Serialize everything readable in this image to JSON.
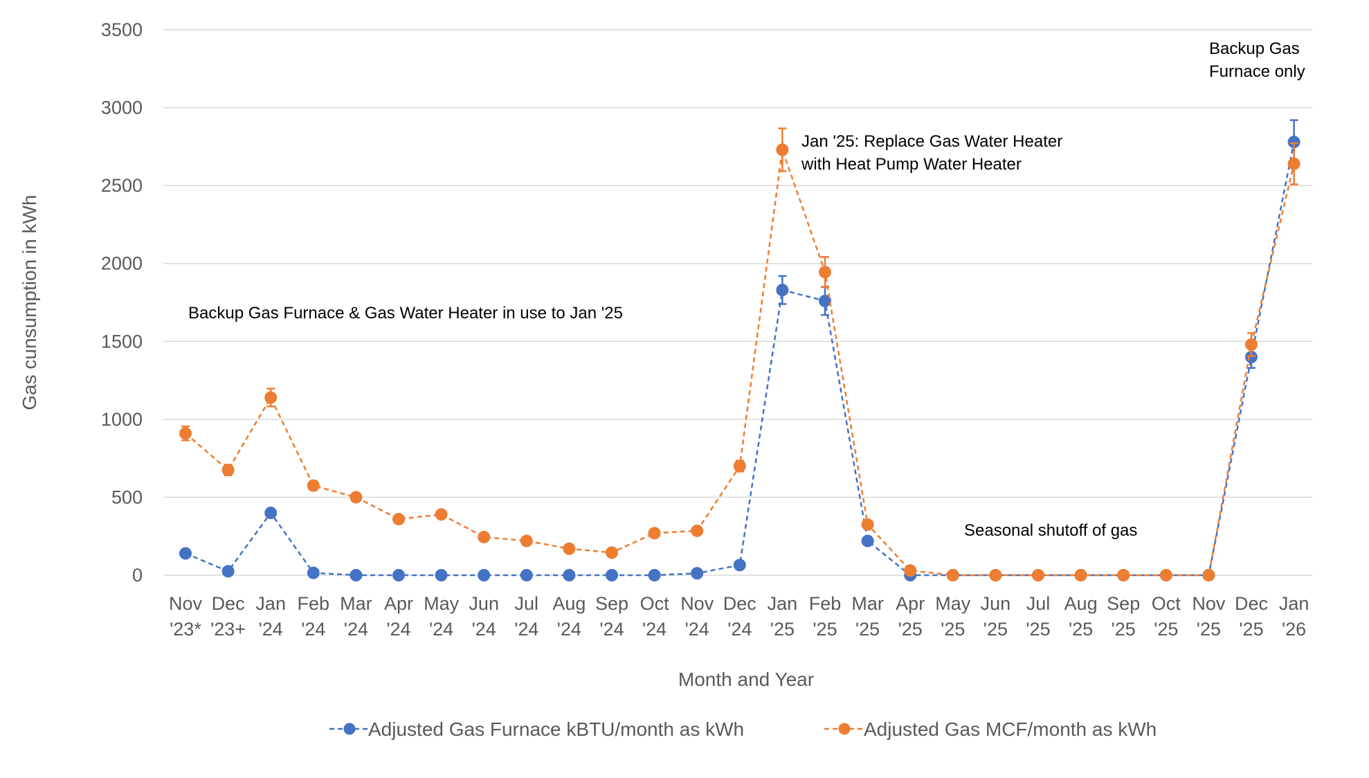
{
  "chart_data": {
    "type": "line",
    "title": "",
    "xlabel": "Month and Year",
    "ylabel": "Gas cunsumption in kWh",
    "ylim": [
      0,
      3500
    ],
    "yticks": [
      0,
      500,
      1000,
      1500,
      2000,
      2500,
      3000,
      3500
    ],
    "grid": true,
    "legend_position": "bottom",
    "categories": [
      [
        "Nov",
        "'23*"
      ],
      [
        "Dec",
        "'23+"
      ],
      [
        "Jan",
        "'24"
      ],
      [
        "Feb",
        "'24"
      ],
      [
        "Mar",
        "'24"
      ],
      [
        "Apr",
        "'24"
      ],
      [
        "May",
        "'24"
      ],
      [
        "Jun",
        "'24"
      ],
      [
        "Jul",
        "'24"
      ],
      [
        "Aug",
        "'24"
      ],
      [
        "Sep",
        "'24"
      ],
      [
        "Oct",
        "'24"
      ],
      [
        "Nov",
        "'24"
      ],
      [
        "Dec",
        "'24"
      ],
      [
        "Jan",
        "'25"
      ],
      [
        "Feb",
        "'25"
      ],
      [
        "Mar",
        "'25"
      ],
      [
        "Apr",
        "'25"
      ],
      [
        "May",
        "'25"
      ],
      [
        "Jun",
        "'25"
      ],
      [
        "Jul",
        "'25"
      ],
      [
        "Aug",
        "'25"
      ],
      [
        "Sep",
        "'25"
      ],
      [
        "Oct",
        "'25"
      ],
      [
        "Nov",
        "'25"
      ],
      [
        "Dec",
        "'25"
      ],
      [
        "Jan",
        "'26"
      ]
    ],
    "series": [
      {
        "name": "Adjusted Gas Furnace kBTU/month as kWh",
        "color": "#4472c4",
        "line_style": "dashed",
        "values": [
          140,
          25,
          400,
          15,
          0,
          0,
          0,
          0,
          0,
          0,
          0,
          0,
          12,
          65,
          1830,
          1760,
          220,
          0,
          0,
          0,
          0,
          0,
          0,
          0,
          0,
          1400,
          2780
        ],
        "error": [
          0,
          0,
          0,
          0,
          0,
          0,
          0,
          0,
          0,
          0,
          0,
          0,
          0,
          0,
          90,
          90,
          0,
          0,
          0,
          0,
          0,
          0,
          0,
          0,
          0,
          70,
          140
        ]
      },
      {
        "name": "Adjusted Gas MCF/month as kWh",
        "color": "#ed7d31",
        "line_style": "dashed",
        "values": [
          910,
          675,
          1140,
          575,
          500,
          360,
          390,
          245,
          220,
          170,
          145,
          270,
          285,
          700,
          2730,
          1945,
          325,
          30,
          0,
          0,
          0,
          0,
          0,
          0,
          0,
          1480,
          2640
        ],
        "error": [
          45,
          34,
          57,
          29,
          25,
          18,
          20,
          12,
          11,
          9,
          7,
          14,
          14,
          35,
          137,
          97,
          16,
          0,
          0,
          0,
          0,
          0,
          0,
          0,
          0,
          74,
          132
        ]
      }
    ],
    "annotations": [
      {
        "lines": [
          "Backup Gas Furnace & Gas Water Heater in use to Jan '25"
        ],
        "anchor": "left-middle"
      },
      {
        "lines": [
          "Jan '25: Replace Gas Water Heater",
          "with Heat Pump Water Heater"
        ],
        "anchor": "upper-middle"
      },
      {
        "lines": [
          "Seasonal shutoff of gas"
        ],
        "anchor": "lower-right"
      },
      {
        "lines": [
          "Backup Gas",
          "Furnace only"
        ],
        "anchor": "top-right"
      }
    ]
  }
}
